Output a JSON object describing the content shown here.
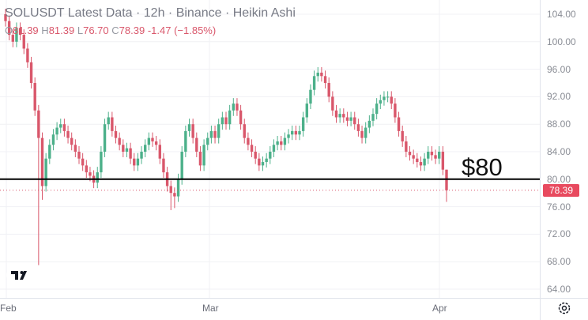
{
  "legend": {
    "title": "SOLUSDT Latest Data · 12h · Binance · Heikin Ashi",
    "o_label": "O",
    "o": "81.39",
    "h_label": "H",
    "h": "81.39",
    "l_label": "L",
    "l": "76.70",
    "c_label": "C",
    "c": "78.39",
    "change": "-1.47 (−1.85%)"
  },
  "price_axis": [
    "104.00",
    "100.00",
    "96.00",
    "92.00",
    "88.00",
    "84.00",
    "80.00",
    "76.00",
    "72.00",
    "68.00",
    "64.00"
  ],
  "time_axis": [
    "Feb",
    "Mar",
    "Apr"
  ],
  "current_price": "78.39",
  "level": {
    "label": "$80",
    "value": 80
  },
  "colors": {
    "up": "#4cb08a",
    "down": "#d9576b",
    "level": "#000000",
    "price_tag": "#e84a5f"
  },
  "icons": {
    "logo": "tradingview-logo",
    "settings": "gear-icon"
  },
  "chart_data": {
    "type": "candlestick",
    "style": "heikin-ashi",
    "ylim": [
      64,
      104
    ],
    "closes": [
      103,
      101,
      100,
      102,
      101,
      99,
      97,
      94,
      90,
      86,
      79,
      83,
      85,
      86.5,
      87.5,
      88,
      87,
      86,
      85,
      84,
      83,
      82,
      81,
      80.5,
      79.5,
      81,
      84,
      88,
      89,
      87,
      86,
      85,
      84,
      84.5,
      83,
      82,
      83,
      84,
      85,
      86,
      85.5,
      85,
      83,
      81,
      79,
      78,
      77.5,
      80,
      84,
      87,
      88,
      86,
      84,
      82,
      85,
      86,
      87,
      86,
      88,
      89,
      88,
      90,
      91,
      90,
      88,
      86,
      85,
      84,
      83,
      82,
      82.5,
      83,
      84,
      85,
      85.5,
      85,
      86,
      86.5,
      87,
      86.5,
      87,
      89,
      91,
      93,
      95,
      95.5,
      95,
      94,
      92,
      90,
      89,
      89.5,
      89,
      88.5,
      89,
      88,
      87,
      86,
      87.5,
      88.5,
      89.5,
      91,
      91.5,
      92,
      92,
      91,
      89,
      87,
      85.5,
      84,
      83.5,
      83,
      82.5,
      82,
      83,
      84,
      83.5,
      83,
      84,
      81.39,
      78.39
    ],
    "last_candle": {
      "open": 81.39,
      "high": 81.39,
      "low": 76.7,
      "close": 78.39
    }
  }
}
